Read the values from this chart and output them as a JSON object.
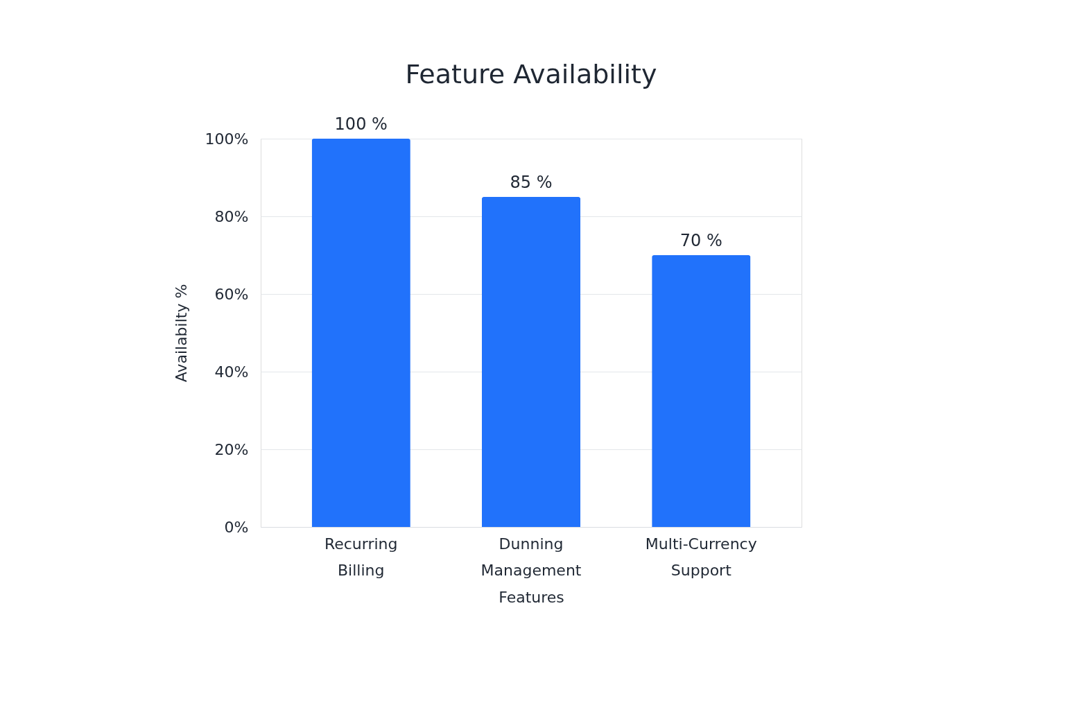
{
  "chart_data": {
    "type": "bar",
    "title": "Feature Availability",
    "xlabel": "Features",
    "ylabel": "Availabilty %",
    "categories": [
      "Recurring Billing",
      "Dunning Management",
      "Multi-Currency Support"
    ],
    "values": [
      100,
      85,
      70
    ],
    "color": "#2172fb",
    "value_labels": [
      "100 %",
      "85 %",
      "70 %"
    ],
    "ylim": [
      0,
      100
    ],
    "yticks": [
      {
        "value": 0,
        "label": "0%"
      },
      {
        "value": 20,
        "label": "20%"
      },
      {
        "value": 40,
        "label": "40%"
      },
      {
        "value": 60,
        "label": "60%"
      },
      {
        "value": 80,
        "label": "80%"
      },
      {
        "value": 100,
        "label": "100%"
      }
    ],
    "grid": "y"
  }
}
